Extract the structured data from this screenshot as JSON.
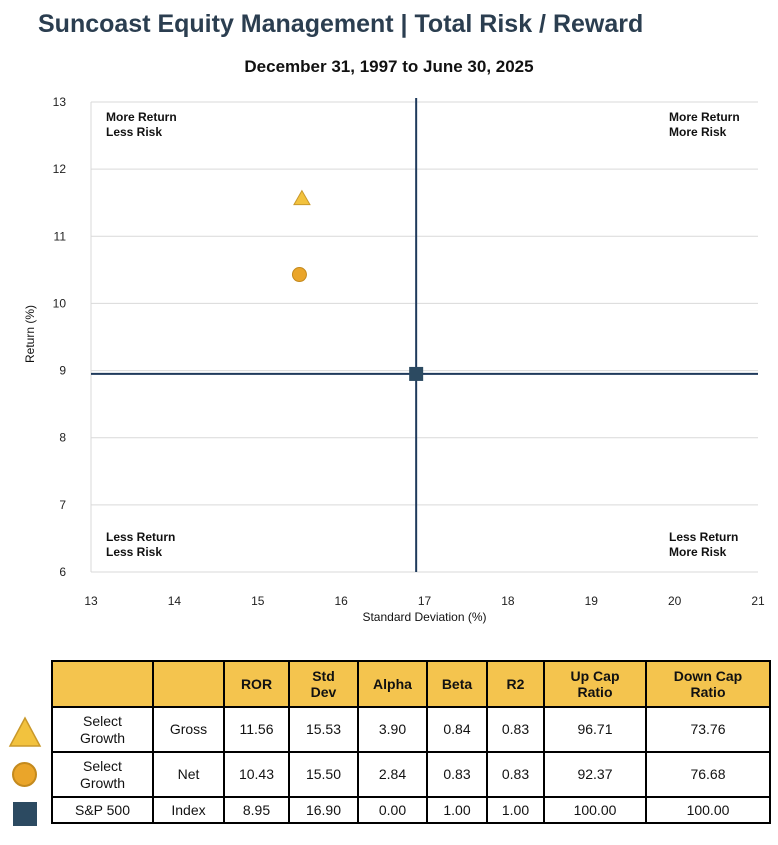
{
  "header": {
    "title": "Suncoast Equity Management | Total Risk / Reward",
    "subtitle": "December 31, 1997 to June 30, 2025"
  },
  "chart_data": {
    "type": "scatter",
    "xlabel": "Standard Deviation (%)",
    "ylabel": "Return (%)",
    "xlim": [
      13,
      21
    ],
    "ylim": [
      6,
      13
    ],
    "x_ticks": [
      13,
      14,
      15,
      16,
      17,
      18,
      19,
      20,
      21
    ],
    "y_ticks": [
      6,
      7,
      8,
      9,
      10,
      11,
      12,
      13
    ],
    "grid": "horizontal",
    "crosshair": {
      "x": 16.9,
      "y": 8.95
    },
    "quadrant_labels": {
      "top_left": [
        "More Return",
        "Less Risk"
      ],
      "top_right": [
        "More Return",
        "More Risk"
      ],
      "bottom_left": [
        "Less Return",
        "Less Risk"
      ],
      "bottom_right": [
        "Less Return",
        "More Risk"
      ]
    },
    "series": [
      {
        "x": 15.53,
        "y": 11.56,
        "marker": "triangle",
        "color": "#f2c23e"
      },
      {
        "x": 15.5,
        "y": 10.43,
        "marker": "circle",
        "color": "#eaa52a"
      },
      {
        "x": 16.9,
        "y": 8.95,
        "marker": "square",
        "color": "#2c4a61"
      }
    ],
    "colors": {
      "crosshair": "#1f3a5c",
      "grid": "#d9d9d9"
    }
  },
  "table": {
    "headers": {
      "ror": "ROR",
      "std_dev": [
        "Std",
        "Dev"
      ],
      "alpha": "Alpha",
      "beta": "Beta",
      "r2": "R2",
      "up_cap": [
        "Up Cap",
        "Ratio"
      ],
      "down_cap": [
        "Down Cap",
        "Ratio"
      ]
    },
    "header_color": "#f4c44e",
    "rows": [
      {
        "name": [
          "Select",
          "Growth"
        ],
        "type": "Gross",
        "ror": "11.56",
        "std_dev": "15.53",
        "alpha": "3.90",
        "beta": "0.84",
        "r2": "0.83",
        "up_cap": "96.71",
        "down_cap": "73.76",
        "marker": "triangle"
      },
      {
        "name": [
          "Select",
          "Growth"
        ],
        "type": "Net",
        "ror": "10.43",
        "std_dev": "15.50",
        "alpha": "2.84",
        "beta": "0.83",
        "r2": "0.83",
        "up_cap": "92.37",
        "down_cap": "76.68",
        "marker": "circle"
      },
      {
        "name": [
          "S&P 500"
        ],
        "type": "Index",
        "ror": "8.95",
        "std_dev": "16.90",
        "alpha": "0.00",
        "beta": "1.00",
        "r2": "1.00",
        "up_cap": "100.00",
        "down_cap": "100.00",
        "marker": "square"
      }
    ]
  }
}
